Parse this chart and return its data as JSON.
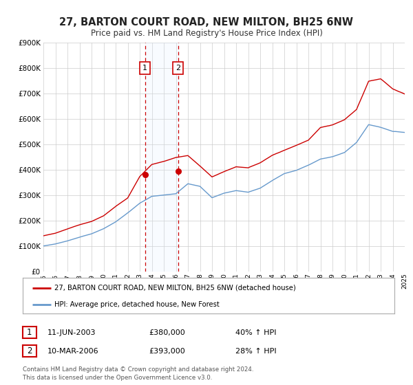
{
  "title": "27, BARTON COURT ROAD, NEW MILTON, BH25 6NW",
  "subtitle": "Price paid vs. HM Land Registry's House Price Index (HPI)",
  "legend_line1": "27, BARTON COURT ROAD, NEW MILTON, BH25 6NW (detached house)",
  "legend_line2": "HPI: Average price, detached house, New Forest",
  "sale1_date": "11-JUN-2003",
  "sale1_price": "£380,000",
  "sale1_hpi": "40% ↑ HPI",
  "sale1_year": 2003.44,
  "sale1_value": 380000,
  "sale2_date": "10-MAR-2006",
  "sale2_price": "£393,000",
  "sale2_hpi": "28% ↑ HPI",
  "sale2_year": 2006.19,
  "sale2_value": 393000,
  "hpi_color": "#6699cc",
  "price_color": "#cc0000",
  "vline_color": "#cc0000",
  "shade_color": "#ddeeff",
  "ylim": [
    0,
    900000
  ],
  "xlim_start": 1995,
  "xlim_end": 2025,
  "background_color": "#ffffff",
  "grid_color": "#cccccc",
  "footer": "Contains HM Land Registry data © Crown copyright and database right 2024.\nThis data is licensed under the Open Government Licence v3.0.",
  "hpi_anchors": {
    "1995": 100000,
    "1996": 108000,
    "1997": 120000,
    "1998": 135000,
    "1999": 148000,
    "2000": 168000,
    "2001": 195000,
    "2002": 230000,
    "2003": 268000,
    "2004": 295000,
    "2005": 300000,
    "2006": 305000,
    "2007": 345000,
    "2008": 335000,
    "2009": 290000,
    "2010": 308000,
    "2011": 318000,
    "2012": 312000,
    "2013": 328000,
    "2014": 358000,
    "2015": 385000,
    "2016": 398000,
    "2017": 418000,
    "2018": 442000,
    "2019": 452000,
    "2020": 468000,
    "2021": 508000,
    "2022": 578000,
    "2023": 568000,
    "2024": 552000,
    "2025": 548000
  },
  "price_anchors": {
    "1995": 140000,
    "1996": 150000,
    "1997": 167000,
    "1998": 183000,
    "1999": 196000,
    "2000": 218000,
    "2001": 255000,
    "2002": 288000,
    "2003": 372000,
    "2004": 420000,
    "2005": 432000,
    "2006": 448000,
    "2007": 456000,
    "2008": 415000,
    "2009": 372000,
    "2010": 393000,
    "2011": 412000,
    "2012": 408000,
    "2013": 428000,
    "2014": 458000,
    "2015": 478000,
    "2016": 498000,
    "2017": 518000,
    "2018": 568000,
    "2019": 578000,
    "2020": 598000,
    "2021": 638000,
    "2022": 748000,
    "2023": 758000,
    "2024": 718000,
    "2025": 698000
  }
}
